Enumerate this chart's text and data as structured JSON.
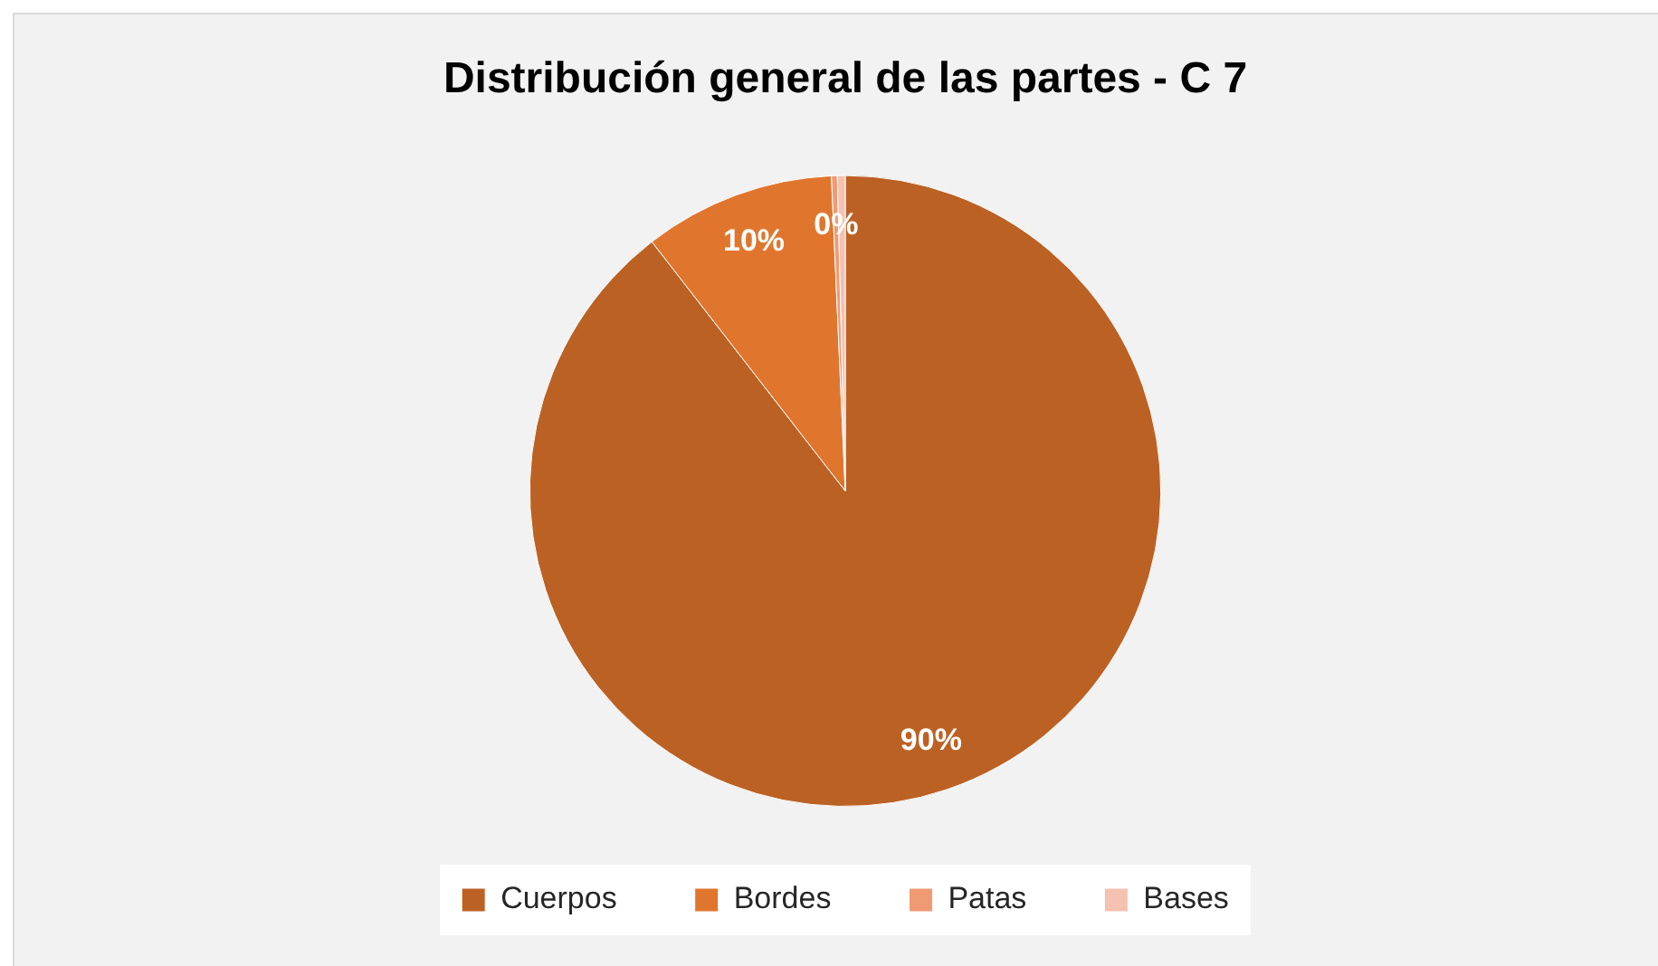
{
  "chart_data": {
    "type": "pie",
    "title": "Distribución general de las partes - C 7",
    "categories": [
      "Cuerpos",
      "Bordes",
      "Patas",
      "Bases"
    ],
    "values": [
      89.5,
      9.8,
      0.3,
      0.4
    ],
    "colors": [
      "#bc6124",
      "#e0762e",
      "#f09a74",
      "#f5c1b1"
    ],
    "value_labels": [
      "90%",
      "10%",
      "0%",
      null
    ],
    "legend": "bottom"
  }
}
